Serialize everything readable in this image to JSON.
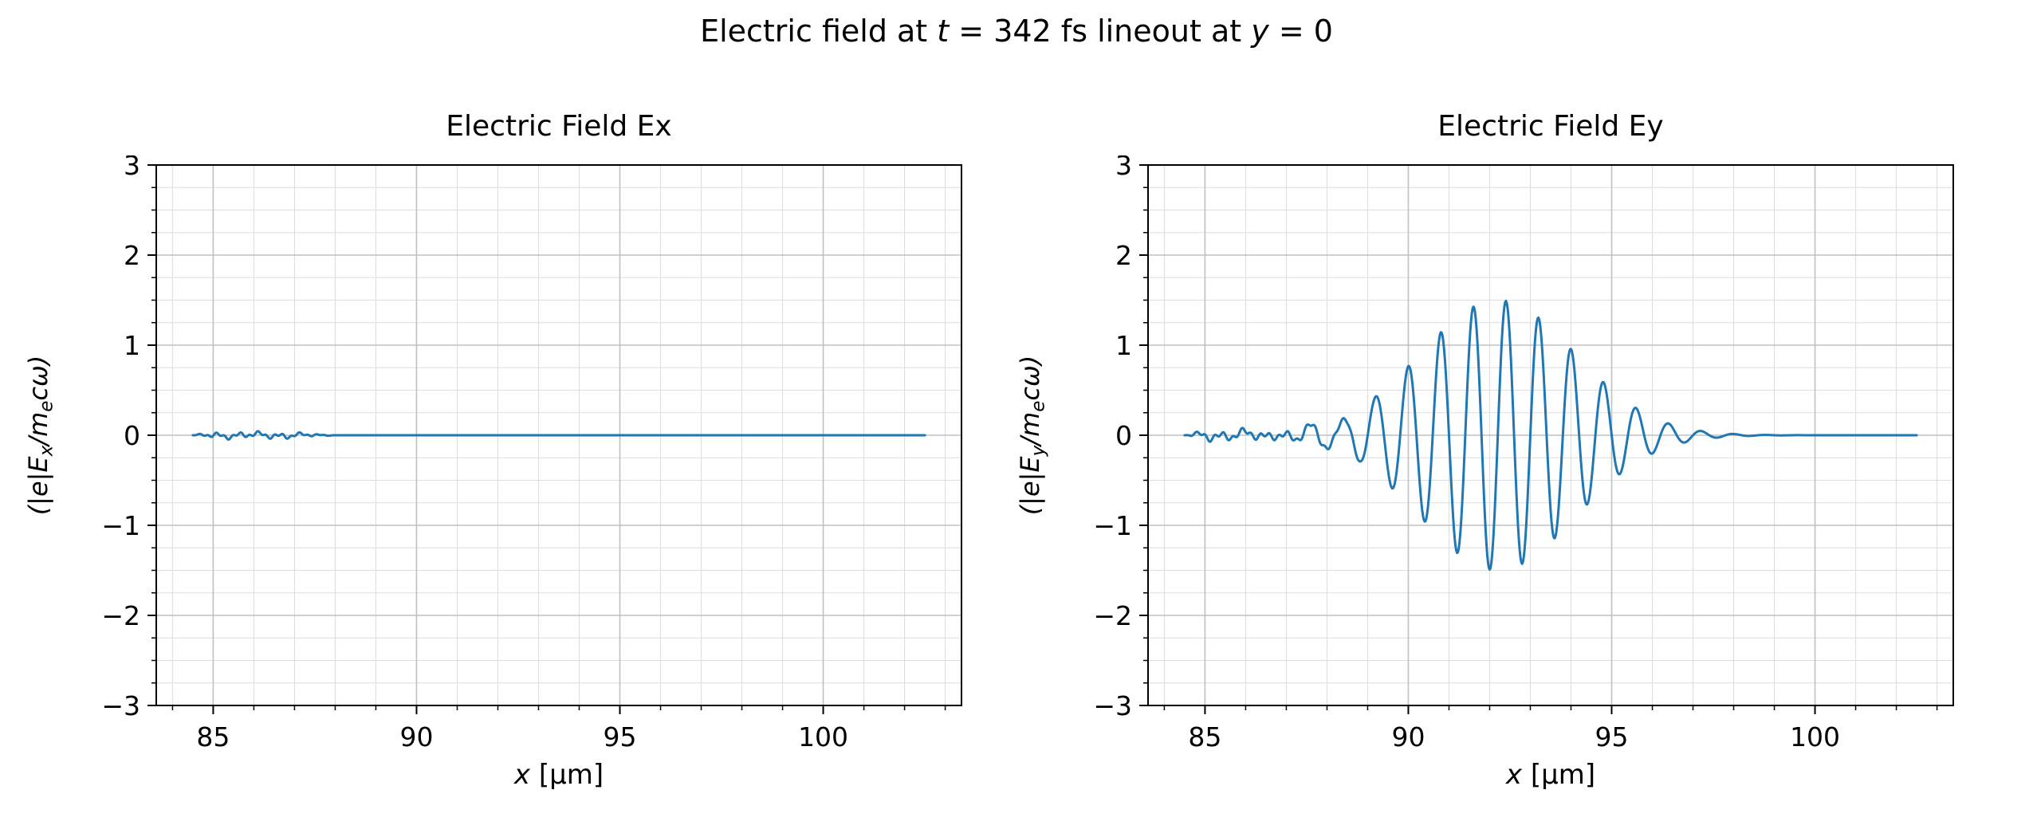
{
  "figure": {
    "title": {
      "p1": "Electric field at ",
      "t_var": "t",
      "p2": " = 342 fs lineout at ",
      "y_var": "y",
      "p3": " = 0"
    },
    "background": "#ffffff",
    "line_color": "#1f77b4"
  },
  "chart_data": [
    {
      "id": "ex",
      "type": "line",
      "title": "Electric Field Ex",
      "xlabel": {
        "var": "x",
        "rest": " [μm]"
      },
      "ylabel": {
        "p1": "(|e|E",
        "sub1": "x",
        "p2": "/m",
        "sub2": "e",
        "p3": "cω)"
      },
      "xlim": [
        83.6,
        103.4
      ],
      "ylim": [
        -3,
        3
      ],
      "xticks": [
        {
          "v": 85,
          "label": "85"
        },
        {
          "v": 90,
          "label": "90"
        },
        {
          "v": 95,
          "label": "95"
        },
        {
          "v": 100,
          "label": "100"
        }
      ],
      "yticks": [
        {
          "v": -3,
          "label": "−3"
        },
        {
          "v": -2,
          "label": "−2"
        },
        {
          "v": -1,
          "label": "−1"
        },
        {
          "v": 0,
          "label": "0"
        },
        {
          "v": 1,
          "label": "1"
        },
        {
          "v": 2,
          "label": "2"
        },
        {
          "v": 3,
          "label": "3"
        }
      ],
      "minor": {
        "x_step": 1,
        "y_step": 0.25
      },
      "grid": {
        "on": true,
        "major_color": "#c0c0c0",
        "minor_color": "#dddddd"
      },
      "line": {
        "color": "#1f77b4",
        "width": 3
      },
      "data_range": [
        84.5,
        102.5
      ],
      "components": [
        {
          "type": "ripple",
          "amplitude": 0.03,
          "start": 84.5,
          "end": 88.0,
          "wavelength": 0.5
        }
      ],
      "summary": "Ex ≈ 0 (flat line) across x = 84.5–102.5 μm; only tiny noise (|Ex| ≲ 0.05) near x = 84.5–88 μm"
    },
    {
      "id": "ey",
      "type": "line",
      "title": "Electric Field Ey",
      "xlabel": {
        "var": "x",
        "rest": " [μm]"
      },
      "ylabel": {
        "p1": "(|e|E",
        "sub1": "y",
        "p2": "/m",
        "sub2": "e",
        "p3": "cω)"
      },
      "xlim": [
        83.6,
        103.4
      ],
      "ylim": [
        -3,
        3
      ],
      "xticks": [
        {
          "v": 85,
          "label": "85"
        },
        {
          "v": 90,
          "label": "90"
        },
        {
          "v": 95,
          "label": "95"
        },
        {
          "v": 100,
          "label": "100"
        }
      ],
      "yticks": [
        {
          "v": -3,
          "label": "−3"
        },
        {
          "v": -2,
          "label": "−2"
        },
        {
          "v": -1,
          "label": "−1"
        },
        {
          "v": 0,
          "label": "0"
        },
        {
          "v": 1,
          "label": "1"
        },
        {
          "v": 2,
          "label": "2"
        },
        {
          "v": 3,
          "label": "3"
        }
      ],
      "minor": {
        "x_step": 1,
        "y_step": 0.25
      },
      "grid": {
        "on": true,
        "major_color": "#c0c0c0",
        "minor_color": "#dddddd"
      },
      "line": {
        "color": "#1f77b4",
        "width": 3
      },
      "data_range": [
        84.5,
        102.5
      ],
      "components": [
        {
          "type": "ripple",
          "amplitude": 0.05,
          "start": 84.5,
          "end": 89.2,
          "wavelength": 0.55
        },
        {
          "type": "wavepacket",
          "amplitude": 1.5,
          "center": 92.2,
          "sigma": 1.9,
          "wavelength": 0.8,
          "phase": 0
        }
      ],
      "envelope_samples": {
        "x": [
          86,
          87,
          88,
          89,
          90,
          91,
          92,
          93,
          94,
          95,
          96,
          97,
          98
        ],
        "amplitude": [
          0.01,
          0.04,
          0.14,
          0.36,
          0.77,
          1.23,
          1.49,
          1.38,
          0.95,
          0.51,
          0.2,
          0.06,
          0.01
        ]
      },
      "summary": "Laser wave packet centered at x ≈ 92.2 μm: peak |Ey| ≈ 1.5, envelope spans ≈ 88.5–96 μm (FWHM ≈ 4.5 μm), oscillation period ≈ 0.8 μm; Ey ≈ 0 elsewhere with small noise before 89 μm"
    }
  ]
}
